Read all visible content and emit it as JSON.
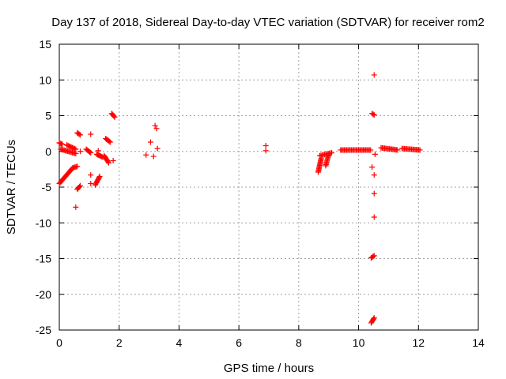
{
  "chart_data": {
    "type": "scatter",
    "title": "Day 137 of 2018, Sidereal Day-to-day VTEC variation (SDTVAR) for receiver rom2",
    "xlabel": "GPS time / hours",
    "ylabel": "SDTVAR / TECUs",
    "xlim": [
      0,
      14
    ],
    "ylim": [
      -25,
      15
    ],
    "xticks": [
      0,
      2,
      4,
      6,
      8,
      10,
      12,
      14
    ],
    "yticks": [
      -25,
      -20,
      -15,
      -10,
      -5,
      0,
      5,
      10,
      15
    ],
    "grid": true,
    "marker": "+",
    "series_color": "#ff0000",
    "segments": [
      {
        "x": [
          0.0,
          0.1
        ],
        "y": [
          1.2,
          1.0
        ]
      },
      {
        "x": [
          0.05,
          0.55
        ],
        "y": [
          0.3,
          -0.3
        ]
      },
      {
        "x": [
          0.0,
          0.45
        ],
        "y": [
          -4.5,
          -2.3
        ]
      },
      {
        "x": [
          0.45,
          0.6
        ],
        "y": [
          -2.3,
          -2.1
        ]
      },
      {
        "x": [
          0.25,
          0.55
        ],
        "y": [
          0.9,
          0.3
        ]
      },
      {
        "x": [
          0.6,
          0.7
        ],
        "y": [
          2.6,
          2.3
        ]
      },
      {
        "x": [
          0.6,
          0.7
        ],
        "y": [
          -5.3,
          -4.8
        ]
      },
      {
        "x": [
          0.9,
          1.05
        ],
        "y": [
          0.3,
          -0.2
        ]
      },
      {
        "x": [
          1.2,
          1.35
        ],
        "y": [
          -4.7,
          -3.5
        ]
      },
      {
        "x": [
          1.25,
          1.45
        ],
        "y": [
          -0.4,
          -0.8
        ]
      },
      {
        "x": [
          1.5,
          1.65
        ],
        "y": [
          -0.6,
          -1.6
        ]
      },
      {
        "x": [
          1.55,
          1.7
        ],
        "y": [
          1.8,
          1.3
        ]
      },
      {
        "x": [
          1.75,
          1.85
        ],
        "y": [
          5.3,
          4.8
        ]
      },
      {
        "x": [
          8.65,
          8.75
        ],
        "y": [
          -2.9,
          -1.0
        ]
      },
      {
        "x": [
          8.7,
          9.1
        ],
        "y": [
          -0.6,
          -0.2
        ]
      },
      {
        "x": [
          8.9,
          9.0
        ],
        "y": [
          -2.0,
          -0.5
        ]
      },
      {
        "x": [
          9.4,
          10.4
        ],
        "y": [
          0.2,
          0.2
        ]
      },
      {
        "x": [
          10.75,
          11.3
        ],
        "y": [
          0.5,
          0.2
        ]
      },
      {
        "x": [
          11.45,
          12.05
        ],
        "y": [
          0.4,
          0.2
        ]
      },
      {
        "x": [
          10.42,
          10.52
        ],
        "y": [
          -24.0,
          -23.3
        ]
      },
      {
        "x": [
          10.42,
          10.52
        ],
        "y": [
          -14.9,
          -14.6
        ]
      },
      {
        "x": [
          10.45,
          10.52
        ],
        "y": [
          5.3,
          5.1
        ]
      }
    ],
    "points": [
      {
        "x": 0.55,
        "y": -7.8
      },
      {
        "x": 0.7,
        "y": 0.0
      },
      {
        "x": 1.05,
        "y": 2.4
      },
      {
        "x": 1.05,
        "y": -3.3
      },
      {
        "x": 1.05,
        "y": -4.5
      },
      {
        "x": 1.3,
        "y": 0.1
      },
      {
        "x": 1.8,
        "y": -1.3
      },
      {
        "x": 2.9,
        "y": -0.5
      },
      {
        "x": 3.05,
        "y": 1.3
      },
      {
        "x": 3.15,
        "y": -0.7
      },
      {
        "x": 3.2,
        "y": 3.6
      },
      {
        "x": 3.25,
        "y": 3.2
      },
      {
        "x": 3.28,
        "y": 0.4
      },
      {
        "x": 6.9,
        "y": 0.8
      },
      {
        "x": 6.9,
        "y": 0.1
      },
      {
        "x": 10.45,
        "y": -2.2
      },
      {
        "x": 10.52,
        "y": 10.7
      },
      {
        "x": 10.52,
        "y": -3.3
      },
      {
        "x": 10.52,
        "y": -5.9
      },
      {
        "x": 10.52,
        "y": -9.2
      },
      {
        "x": 10.55,
        "y": -0.4
      }
    ]
  }
}
